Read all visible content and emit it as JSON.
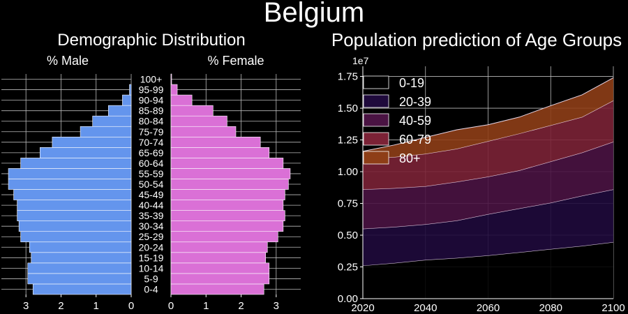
{
  "title": "Belgium",
  "colors": {
    "background": "#000000",
    "male_bar": "#6495ed",
    "female_bar": "#da70d6",
    "grid": "#bbbbbb"
  },
  "chart_data": [
    {
      "type": "bar",
      "orientation": "horizontal",
      "title": "Demographic Distribution",
      "age_groups": [
        "0-4",
        "5-9",
        "10-14",
        "15-19",
        "20-24",
        "25-29",
        "30-34",
        "35-39",
        "40-44",
        "45-49",
        "50-54",
        "55-59",
        "60-64",
        "65-69",
        "70-74",
        "75-79",
        "80-84",
        "85-89",
        "90-94",
        "95-99",
        "100+"
      ],
      "series": [
        {
          "name": "% Male",
          "values": [
            2.8,
            2.95,
            2.95,
            2.85,
            2.9,
            3.15,
            3.2,
            3.25,
            3.25,
            3.35,
            3.5,
            3.5,
            3.15,
            2.6,
            2.25,
            1.45,
            1.1,
            0.65,
            0.25,
            0.05,
            0.0
          ],
          "xlim": [
            3.7,
            0
          ],
          "ticks": [
            3,
            2,
            1,
            0
          ]
        },
        {
          "name": "% Female",
          "values": [
            2.65,
            2.8,
            2.8,
            2.7,
            2.75,
            3.05,
            3.2,
            3.25,
            3.2,
            3.25,
            3.35,
            3.4,
            3.2,
            2.8,
            2.55,
            1.85,
            1.6,
            1.2,
            0.6,
            0.18,
            0.02
          ],
          "xlim": [
            0,
            3.7
          ],
          "ticks": [
            0,
            1,
            2,
            3
          ]
        }
      ]
    },
    {
      "type": "area",
      "stacked": true,
      "title": "Population prediction of Age Groups",
      "x": [
        2020,
        2030,
        2040,
        2050,
        2060,
        2070,
        2080,
        2090,
        2100
      ],
      "xlim": [
        2020,
        2100
      ],
      "ylim": [
        0,
        18300000
      ],
      "y_ticks": [
        0,
        2500000,
        5000000,
        7500000,
        10000000,
        12500000,
        15000000,
        17500000
      ],
      "y_tick_labels": [
        "0.00",
        "0.25",
        "0.50",
        "0.75",
        "1.00",
        "1.25",
        "1.50",
        "1.75"
      ],
      "y_multiplier": "1e7",
      "x_ticks": [
        2020,
        2040,
        2060,
        2080,
        2100
      ],
      "legend_position": "top-left",
      "series": [
        {
          "name": "0-19",
          "color": "#000000",
          "values": [
            2600000,
            2800000,
            3050000,
            3200000,
            3400000,
            3650000,
            3900000,
            4150000,
            4450000
          ]
        },
        {
          "name": "20-39",
          "color": "#1f0a3c",
          "values": [
            2900000,
            2850000,
            2800000,
            2950000,
            3250000,
            3450000,
            3650000,
            3950000,
            4150000
          ]
        },
        {
          "name": "40-59",
          "color": "#4a1343",
          "values": [
            3100000,
            3050000,
            3000000,
            3050000,
            2950000,
            3000000,
            3250000,
            3400000,
            3750000
          ]
        },
        {
          "name": "60-79",
          "color": "#7b2236",
          "values": [
            2400000,
            2450000,
            2550000,
            2600000,
            2800000,
            2900000,
            2850000,
            2800000,
            3250000
          ]
        },
        {
          "name": "80+",
          "color": "#8e3e17",
          "values": [
            600000,
            950000,
            1300000,
            1500000,
            1300000,
            1300000,
            1550000,
            1750000,
            1800000
          ]
        }
      ]
    }
  ]
}
